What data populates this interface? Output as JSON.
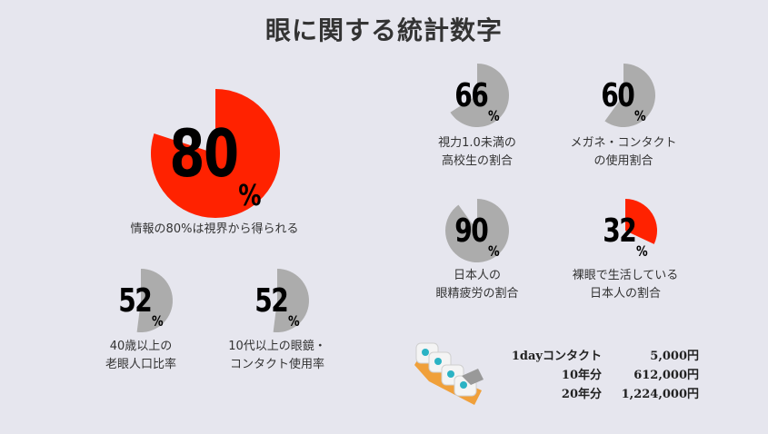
{
  "title": "眼に関する統計数字",
  "colors": {
    "highlight": "#ff2200",
    "neutral": "#acacac",
    "background": "#e6e6ee"
  },
  "chart_data": {
    "type": "pie",
    "items": [
      {
        "value": 80,
        "label": "80",
        "unit": "%",
        "caption": [
          "情報の80%は視界から得られる"
        ],
        "color": "#ff2200"
      },
      {
        "value": 66,
        "label": "66",
        "unit": "%",
        "caption": [
          "視力1.0未満の",
          "高校生の割合"
        ],
        "color": "#acacac"
      },
      {
        "value": 60,
        "label": "60",
        "unit": "%",
        "caption": [
          "メガネ・コンタクト",
          "の使用割合"
        ],
        "color": "#acacac"
      },
      {
        "value": 90,
        "label": "90",
        "unit": "%",
        "caption": [
          "日本人の",
          "眼精疲労の割合"
        ],
        "color": "#acacac"
      },
      {
        "value": 32,
        "label": "32",
        "unit": "%",
        "caption": [
          "裸眼で生活している",
          "日本人の割合"
        ],
        "color": "#ff2200"
      },
      {
        "value": 52,
        "label": "52",
        "unit": "%",
        "caption": [
          "40歳以上の",
          "老眼人口比率"
        ],
        "color": "#acacac"
      },
      {
        "value": 52,
        "label": "52",
        "unit": "%",
        "caption": [
          "10代以上の眼鏡・",
          "コンタクト使用率"
        ],
        "color": "#acacac"
      }
    ]
  },
  "cost": {
    "icon": "contact-lens-pack-icon",
    "rows": [
      {
        "label": "1dayコンタクト",
        "value": "5,000円"
      },
      {
        "label": "10年分",
        "value": "612,000円"
      },
      {
        "label": "20年分",
        "value": "1,224,000円"
      }
    ]
  }
}
